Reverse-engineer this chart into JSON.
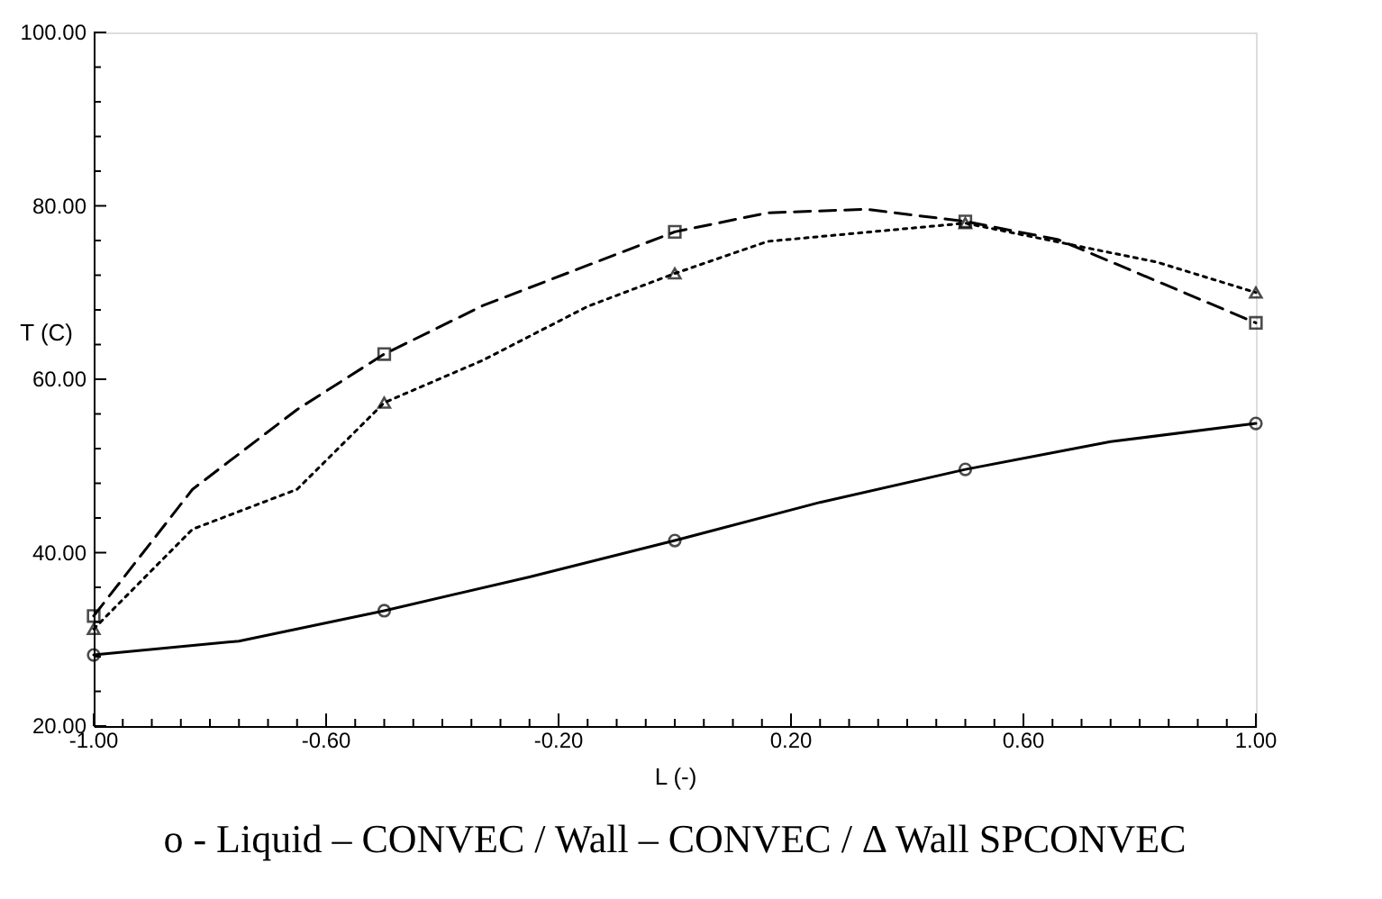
{
  "chart_data": {
    "type": "line",
    "xlabel": "L (-)",
    "ylabel": "T (C)",
    "xlim": [
      -1,
      1
    ],
    "ylim": [
      20,
      100
    ],
    "xticks": [
      {
        "value": -1,
        "label": "-1.00"
      },
      {
        "value": -0.95,
        "label": null
      },
      {
        "value": -0.9,
        "label": null
      },
      {
        "value": -0.85,
        "label": null
      },
      {
        "value": -0.8,
        "label": null
      },
      {
        "value": -0.75,
        "label": null
      },
      {
        "value": -0.7,
        "label": null
      },
      {
        "value": -0.65,
        "label": null
      },
      {
        "value": -0.6,
        "label": "-0.60"
      },
      {
        "value": -0.55,
        "label": null
      },
      {
        "value": -0.5,
        "label": null
      },
      {
        "value": -0.45,
        "label": null
      },
      {
        "value": -0.4,
        "label": null
      },
      {
        "value": -0.35,
        "label": null
      },
      {
        "value": -0.3,
        "label": null
      },
      {
        "value": -0.25,
        "label": null
      },
      {
        "value": -0.2,
        "label": "-0.20"
      },
      {
        "value": -0.15,
        "label": null
      },
      {
        "value": -0.1,
        "label": null
      },
      {
        "value": -0.05,
        "label": null
      },
      {
        "value": 0,
        "label": null
      },
      {
        "value": 0.05,
        "label": null
      },
      {
        "value": 0.1,
        "label": null
      },
      {
        "value": 0.15,
        "label": null
      },
      {
        "value": 0.2,
        "label": "0.20"
      },
      {
        "value": 0.25,
        "label": null
      },
      {
        "value": 0.3,
        "label": null
      },
      {
        "value": 0.35,
        "label": null
      },
      {
        "value": 0.4,
        "label": null
      },
      {
        "value": 0.45,
        "label": null
      },
      {
        "value": 0.5,
        "label": null
      },
      {
        "value": 0.55,
        "label": null
      },
      {
        "value": 0.6,
        "label": "0.60"
      },
      {
        "value": 0.65,
        "label": null
      },
      {
        "value": 0.7,
        "label": null
      },
      {
        "value": 0.75,
        "label": null
      },
      {
        "value": 0.8,
        "label": null
      },
      {
        "value": 0.85,
        "label": null
      },
      {
        "value": 0.9,
        "label": null
      },
      {
        "value": 0.95,
        "label": null
      },
      {
        "value": 1,
        "label": "1.00"
      }
    ],
    "yticks": [
      {
        "value": 20,
        "label": "20.00"
      },
      {
        "value": 24,
        "label": null
      },
      {
        "value": 28,
        "label": null
      },
      {
        "value": 32,
        "label": null
      },
      {
        "value": 36,
        "label": null
      },
      {
        "value": 40,
        "label": "40.00"
      },
      {
        "value": 44,
        "label": null
      },
      {
        "value": 48,
        "label": null
      },
      {
        "value": 52,
        "label": null
      },
      {
        "value": 56,
        "label": null
      },
      {
        "value": 60,
        "label": "60.00"
      },
      {
        "value": 64,
        "label": null
      },
      {
        "value": 68,
        "label": null
      },
      {
        "value": 72,
        "label": null
      },
      {
        "value": 76,
        "label": null
      },
      {
        "value": 80,
        "label": "80.00"
      },
      {
        "value": 84,
        "label": null
      },
      {
        "value": 88,
        "label": null
      },
      {
        "value": 92,
        "label": null
      },
      {
        "value": 96,
        "label": null
      },
      {
        "value": 100,
        "label": "100.00"
      }
    ],
    "grid": false,
    "series": [
      {
        "type": "line",
        "line_style": "solid",
        "marker": "none",
        "color": "#000000",
        "x": [
          -1,
          -0.75,
          -0.5,
          -0.25,
          0,
          0.25,
          0.5,
          0.75,
          1
        ],
        "values": [
          28.2,
          29.8,
          33.3,
          37.2,
          41.4,
          45.8,
          49.6,
          52.8,
          54.9
        ]
      },
      {
        "type": "line",
        "line_style": "dashed",
        "marker": "none",
        "color": "#000000",
        "x": [
          -1,
          -0.83,
          -0.65,
          -0.5,
          -0.33,
          0,
          0.16,
          0.33,
          0.5,
          0.66,
          1
        ],
        "values": [
          32.7,
          47.3,
          56.5,
          62.9,
          68.5,
          77.0,
          79.2,
          79.6,
          78.2,
          76.1,
          66.5
        ]
      },
      {
        "type": "line",
        "line_style": "dotted",
        "marker": "none",
        "color": "#000000",
        "x": [
          -1,
          -0.83,
          -0.65,
          -0.5,
          -0.33,
          -0.15,
          0,
          0.16,
          0.5,
          0.83,
          1
        ],
        "values": [
          31.2,
          42.7,
          47.3,
          57.3,
          62.2,
          68.4,
          72.2,
          75.9,
          78.0,
          73.5,
          70.0
        ]
      },
      {
        "type": "scatter",
        "marker": "circle",
        "color": "#000000",
        "x": [
          -1,
          -0.5,
          0,
          0.5,
          1
        ],
        "values": [
          28.2,
          33.3,
          41.4,
          49.6,
          54.9
        ]
      },
      {
        "type": "scatter",
        "marker": "square",
        "color": "#000000",
        "x": [
          -1,
          -0.5,
          0,
          0.5,
          1
        ],
        "values": [
          32.7,
          62.9,
          77.0,
          78.2,
          66.5
        ]
      },
      {
        "type": "scatter",
        "marker": "triangle",
        "color": "#000000",
        "x": [
          -1,
          -0.5,
          0,
          0.5,
          1
        ],
        "values": [
          31.2,
          57.3,
          72.2,
          78.0,
          70.0
        ]
      }
    ],
    "annotations": [
      "o - Liquid – CONVEC /    Wall – CONVEC / Δ Wall SPCONVEC"
    ]
  }
}
